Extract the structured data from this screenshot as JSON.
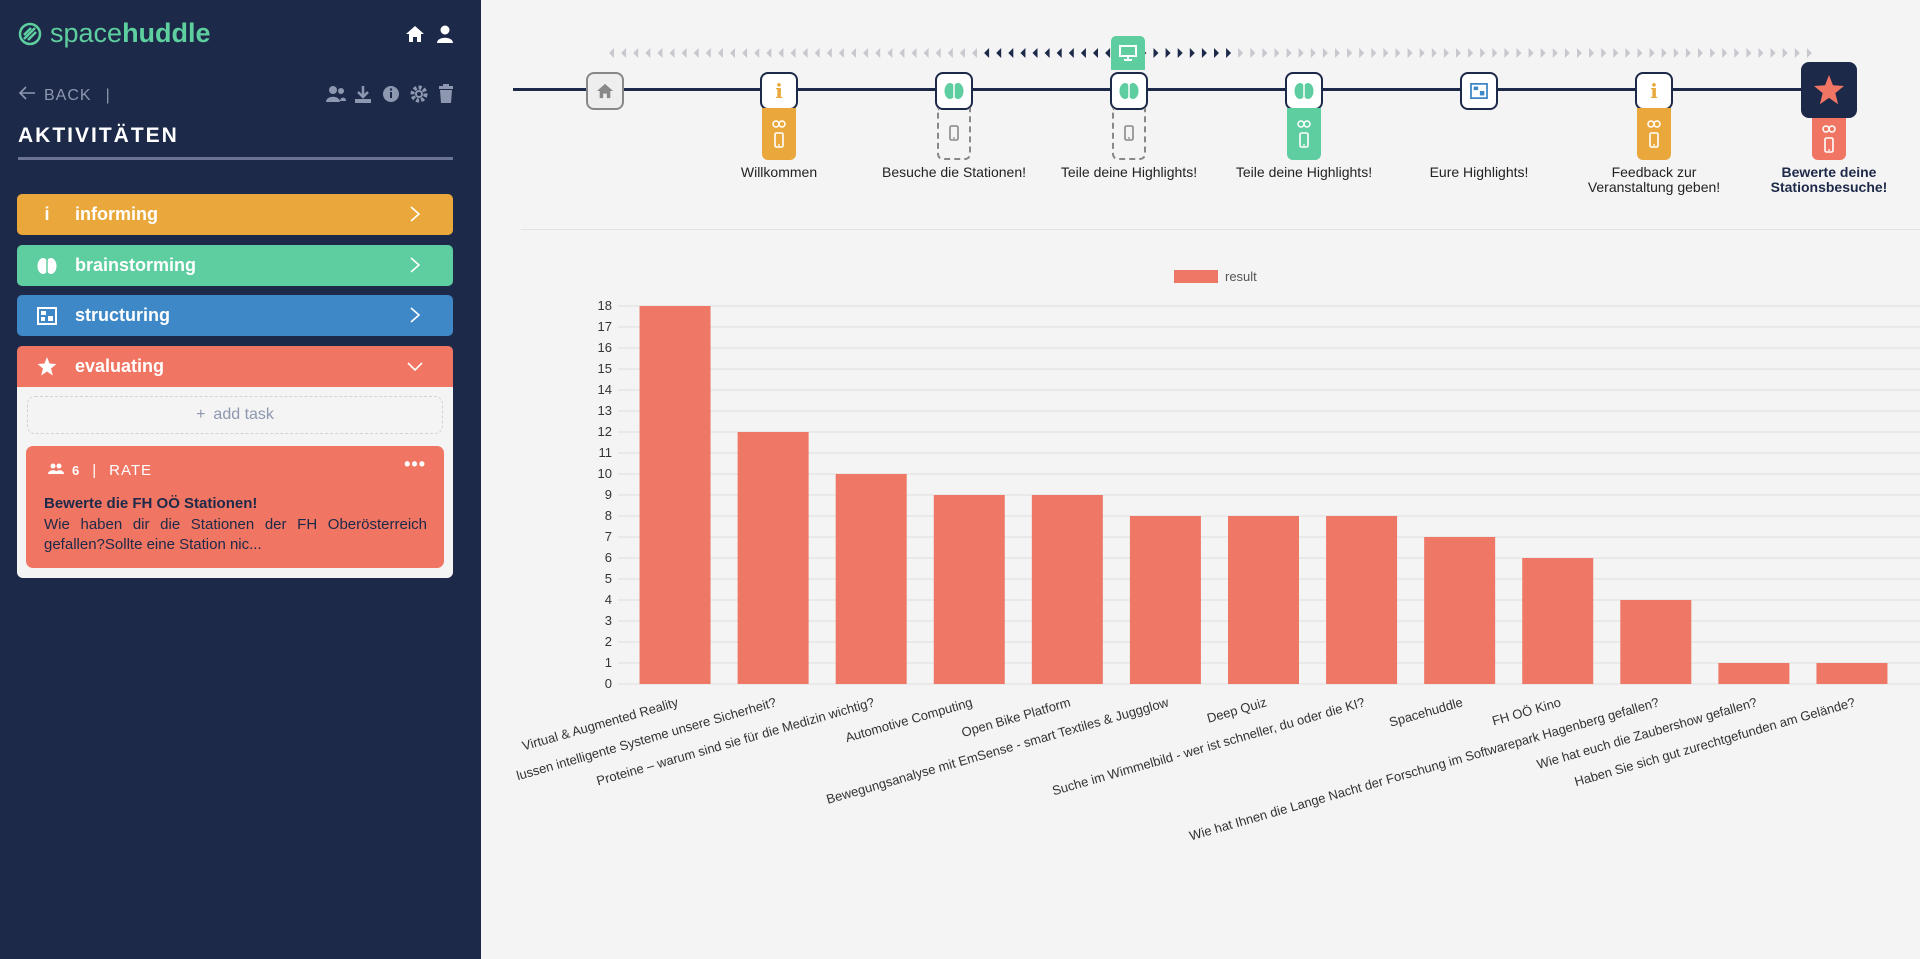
{
  "app": {
    "logo_light": "space",
    "logo_bold": "huddle"
  },
  "sidebar": {
    "back_label": "BACK",
    "section_title": "AKTIVITÄTEN",
    "categories": [
      {
        "label": "informing",
        "icon": "info-icon",
        "color": "#eaa83c"
      },
      {
        "label": "brainstorming",
        "icon": "brain-icon",
        "color": "#5ecd9f"
      },
      {
        "label": "structuring",
        "icon": "structure-icon",
        "color": "#3f88c8"
      },
      {
        "label": "evaluating",
        "icon": "star-icon",
        "color": "#f07563"
      }
    ],
    "add_task_label": "add task",
    "task": {
      "participants": "6",
      "type": "RATE",
      "title": "Bewerte die FH OÖ Stationen!",
      "description": "Wie haben dir die Stationen der FH Oberösterreich gefallen?Sollte eine Station nic..."
    }
  },
  "timeline": {
    "steps": [
      {
        "label": "Willkommen",
        "icon": "info-icon"
      },
      {
        "label": "Besuche die Stationen!",
        "icon": "brain-icon"
      },
      {
        "label": "Teile deine Highlights!",
        "icon": "brain-icon"
      },
      {
        "label": "Teile deine Highlights!",
        "icon": "brain-icon"
      },
      {
        "label": "Eure Highlights!",
        "icon": "structure-icon"
      },
      {
        "label": "Feedback zur Veranstaltung geben!",
        "icon": "info-icon"
      },
      {
        "label": "Bewerte deine Stationsbesuche!",
        "icon": "star-icon"
      }
    ]
  },
  "chart_data": {
    "type": "bar",
    "legend": [
      "result"
    ],
    "legend_position": "top",
    "series": [
      {
        "name": "result",
        "color": "#ef7766",
        "values": [
          18,
          12,
          10,
          9,
          9,
          8,
          8,
          8,
          7,
          6,
          4,
          1,
          1
        ]
      }
    ],
    "categories": [
      "Virtual & Augmented Reality",
      "lussen intelligente Systeme unsere Sicherheit?",
      "Proteine – warum sind sie für die Medizin wichtig?",
      "Automotive Computing",
      "Open Bike Platform",
      "Bewegungsanalyse mit EmSense - smart Textiles & Juggglow",
      "Deep Quiz",
      "Suche im Wimmelbild - wer ist schneller, du oder die KI?",
      "Spacehuddle",
      "FH OÖ Kino",
      "Wie hat Ihnen die Lange Nacht der Forschung im Softwarepark Hagenberg gefallen?",
      "Wie hat euch die Zaubershow gefallen?",
      "Haben Sie sich gut zurechtgefunden am Gelände?"
    ],
    "y_ticks": [
      "0",
      "1",
      "2",
      "3",
      "4",
      "5",
      "6",
      "7",
      "8",
      "9",
      "10",
      "11",
      "12",
      "13",
      "14",
      "15",
      "16",
      "17",
      "18"
    ],
    "ylim": [
      0,
      18
    ],
    "grid": true
  }
}
